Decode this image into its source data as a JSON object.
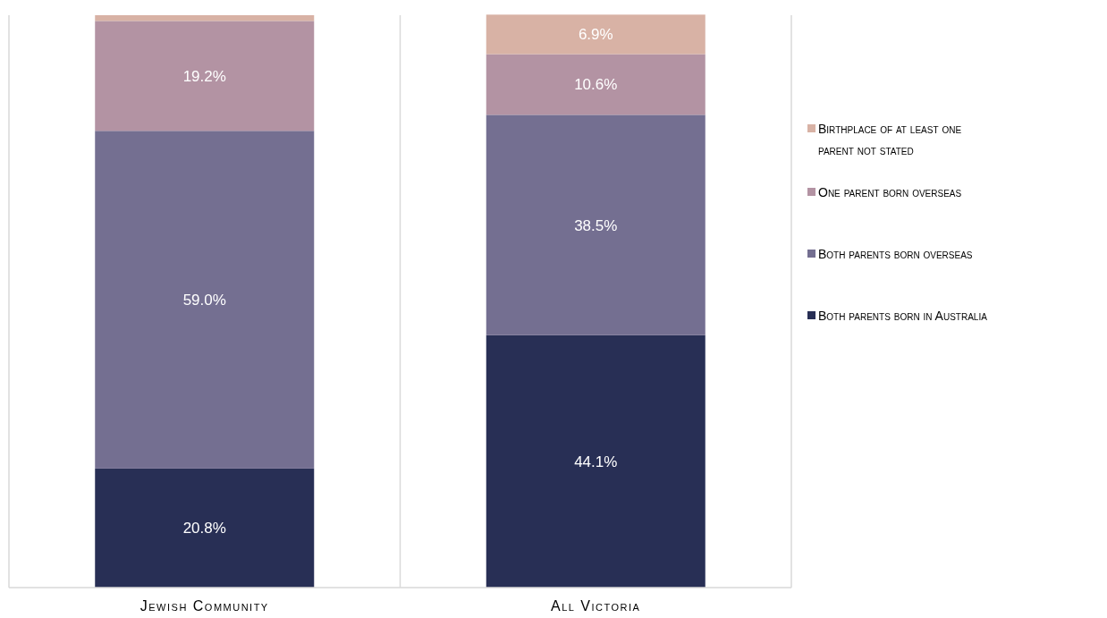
{
  "chart_data": {
    "type": "bar",
    "stacked": true,
    "categories": [
      "Jewish Community",
      "All Victoria"
    ],
    "ylim": [
      0,
      100
    ],
    "tick_labels": "x",
    "legend": "right",
    "series": [
      {
        "name": "Both parents born in Australia",
        "color": "#282f55",
        "values": [
          20.8,
          44.1
        ],
        "value_labels": [
          "20.8%",
          "44.1%"
        ]
      },
      {
        "name": "Both parents born overseas",
        "color": "#746f91",
        "values": [
          59.0,
          38.5
        ],
        "value_labels": [
          "59.0%",
          "38.5%"
        ]
      },
      {
        "name": "One parent born overseas",
        "color": "#b393a3",
        "values": [
          19.2,
          10.6
        ],
        "value_labels": [
          "19.2%",
          "10.6%"
        ]
      },
      {
        "name": "Birthplace of at least one parent not stated",
        "color": "#d8b2a5",
        "values": [
          1.0,
          6.9
        ],
        "value_labels": [
          null,
          "6.9%"
        ]
      }
    ]
  }
}
